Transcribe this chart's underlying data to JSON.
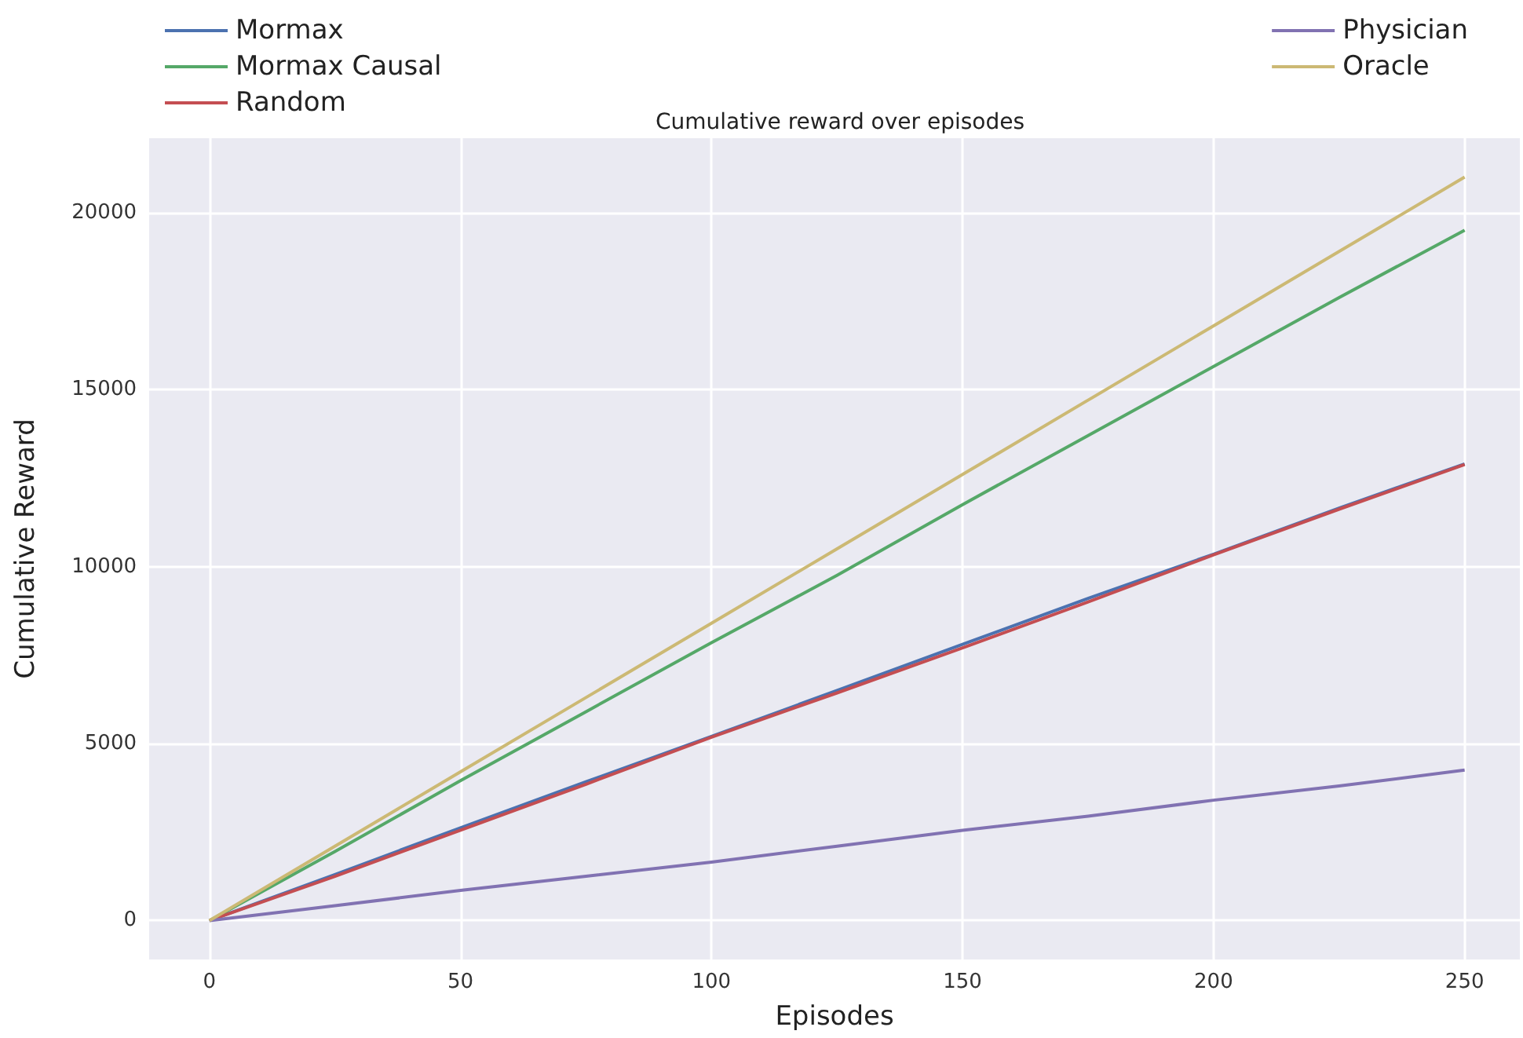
{
  "chart_data": {
    "type": "line",
    "title": "Cumulative reward over episodes",
    "xlabel": "Episodes",
    "ylabel": "Cumulative Reward",
    "x": [
      0,
      25,
      50,
      75,
      100,
      125,
      150,
      175,
      200,
      225,
      250
    ],
    "series": [
      {
        "name": "Mormax",
        "color": "#4c72b0",
        "values": [
          0,
          1300,
          2620,
          3920,
          5200,
          6500,
          7800,
          9100,
          10350,
          11650,
          12900
        ]
      },
      {
        "name": "Mormax Causal",
        "color": "#55a868",
        "values": [
          0,
          1950,
          3950,
          5900,
          7850,
          9750,
          11750,
          13700,
          15650,
          17600,
          19500
        ]
      },
      {
        "name": "Random",
        "color": "#c44e52",
        "values": [
          0,
          1250,
          2550,
          3850,
          5180,
          6430,
          7700,
          9000,
          10330,
          11620,
          12880
        ]
      },
      {
        "name": "Physician",
        "color": "#8172b2",
        "values": [
          0,
          420,
          850,
          1250,
          1650,
          2100,
          2550,
          2950,
          3400,
          3800,
          4250
        ]
      },
      {
        "name": "Oracle",
        "color": "#ccb974",
        "values": [
          0,
          2100,
          4200,
          6300,
          8400,
          10500,
          12600,
          14700,
          16800,
          18900,
          21000
        ]
      }
    ],
    "xlim": [
      -12,
      261
    ],
    "xticks": [
      0,
      50,
      100,
      150,
      200,
      250
    ],
    "ylim": [
      -1100,
      22100
    ],
    "yticks": [
      0,
      5000,
      10000,
      15000,
      20000
    ],
    "grid": true,
    "legend": "top",
    "marker": "none",
    "line_style": "solid"
  }
}
